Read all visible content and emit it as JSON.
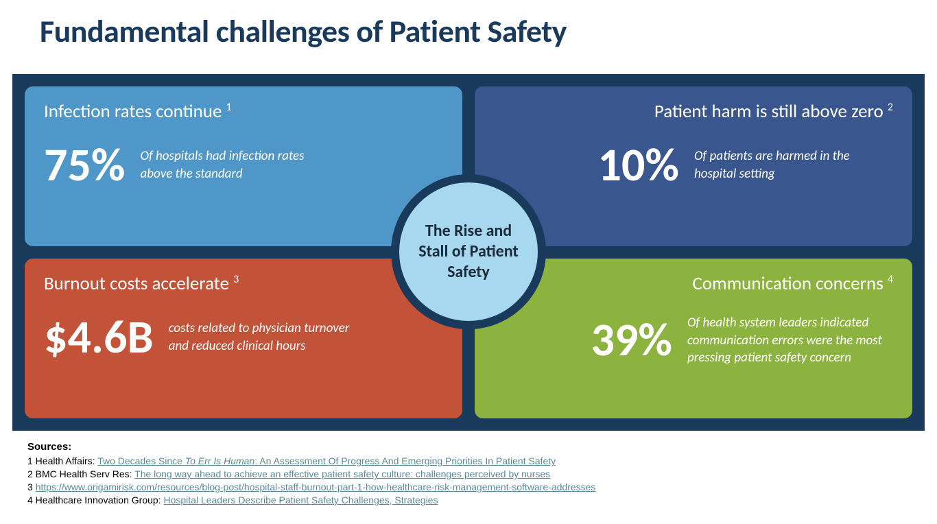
{
  "title": "Fundamental challenges of Patient Safety",
  "center": "The Rise and Stall of Patient Safety",
  "cards": {
    "tl": {
      "title": "Infection rates continue",
      "sup": "1",
      "stat": "75%",
      "desc": "Of hospitals had infection rates above the standard",
      "bg": "#4f96c9"
    },
    "tr": {
      "title": "Patient harm is still above zero",
      "sup": "2",
      "stat": "10%",
      "desc": "Of patients are harmed in the hospital setting",
      "bg": "#39568f"
    },
    "bl": {
      "title": "Burnout costs accelerate",
      "sup": "3",
      "stat": "$4.6B",
      "desc": "costs related to physician turnover and reduced clinical hours",
      "bg": "#c25238"
    },
    "br": {
      "title": "Communication concerns",
      "sup": "4",
      "stat": "39%",
      "desc": "Of health system leaders indicated communication errors were the most pressing patient safety concern",
      "bg": "#8cb33f"
    }
  },
  "sources": {
    "heading": "Sources:",
    "items": [
      {
        "prefix": "1 Health Affairs: ",
        "link_pre": "Two Decades Since ",
        "link_ital": "To Err Is Human",
        "link_post": ": An Assessment Of Progress And Emerging Priorities In Patient Safety"
      },
      {
        "prefix": "2 BMC Health Serv Res: ",
        "link_pre": "The long way ahead to achieve an effective patient safety culture: challenges perceived by nurses",
        "link_ital": "",
        "link_post": ""
      },
      {
        "prefix": "3 ",
        "link_pre": "https://www.origamirisk.com/resources/blog-post/hospital-staff-burnout-part-1-how-healthcare-risk-management-software-addresses",
        "link_ital": "",
        "link_post": ""
      },
      {
        "prefix": "4 Healthcare Innovation Group: ",
        "link_pre": "Hospital Leaders Describe Patient Safety Challenges, Strategies",
        "link_ital": "",
        "link_post": ""
      }
    ]
  },
  "colors": {
    "slide_title": "#1a3a5c",
    "panel_bg": "#1a3a5c",
    "circle_fill": "#a7d8ef",
    "circle_border": "#1a3a5c",
    "link_color": "#5a8a9a"
  }
}
